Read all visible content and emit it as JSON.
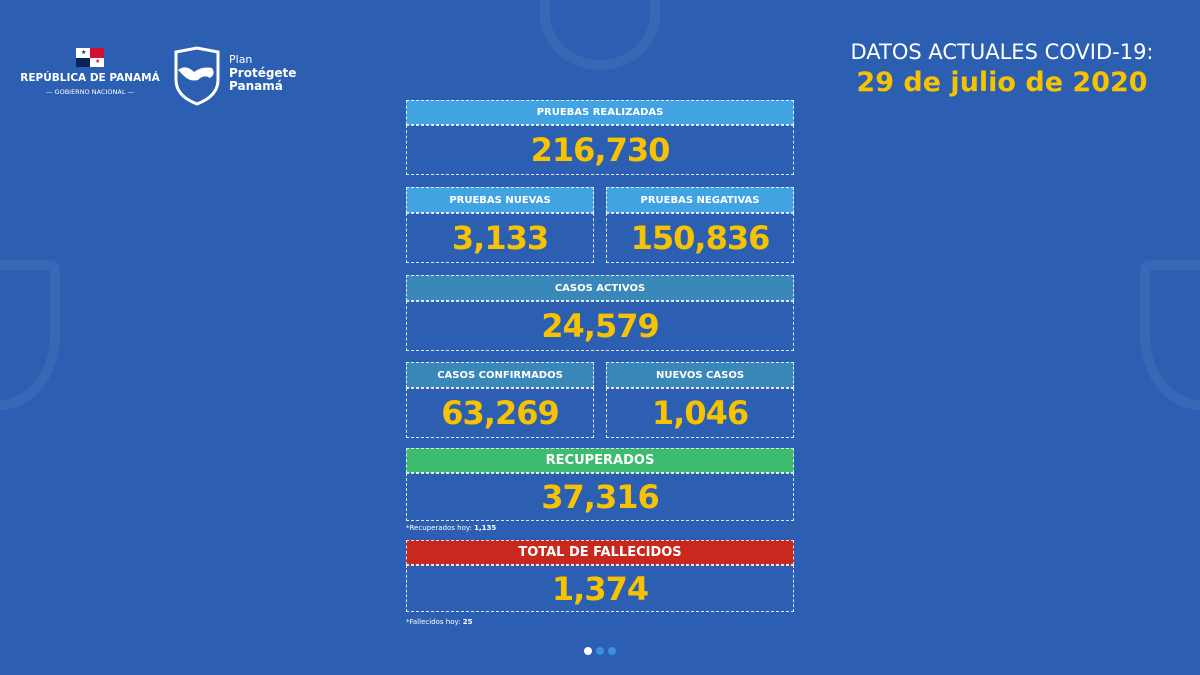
{
  "logos": {
    "republica": "REPÚBLICA DE PANAMÁ",
    "gobierno": "GOBIERNO NACIONAL",
    "plan": "Plan",
    "plan_bold1": "Protégete",
    "plan_bold2": "Panamá"
  },
  "title": {
    "line1": "DATOS ACTUALES COVID-19:",
    "date": "29 de julio de 2020"
  },
  "stats": {
    "pruebas_realizadas": {
      "label": "PRUEBAS REALIZADAS",
      "value": "216,730"
    },
    "pruebas_nuevas": {
      "label": "PRUEBAS NUEVAS",
      "value": "3,133"
    },
    "pruebas_negativas": {
      "label": "PRUEBAS NEGATIVAS",
      "value": "150,836"
    },
    "casos_activos": {
      "label": "CASOS ACTIVOS",
      "value": "24,579"
    },
    "casos_confirmados": {
      "label": "CASOS CONFIRMADOS",
      "value": "63,269"
    },
    "nuevos_casos": {
      "label": "NUEVOS CASOS",
      "value": "1,046"
    },
    "recuperados": {
      "label": "RECUPERADOS",
      "value": "37,316",
      "note_label": "*Recuperados hoy:",
      "note_value": "1,135"
    },
    "fallecidos": {
      "label": "TOTAL DE FALLECIDOS",
      "value": "1,374",
      "note_label": "*Fallecidos hoy:",
      "note_value": "25"
    }
  },
  "colors": {
    "background": "#2c5fb1",
    "header_blue": "#41a3e2",
    "header_teal": "#3a87b9",
    "header_green": "#3dbb6e",
    "header_red": "#c8281e",
    "value_yellow": "#f7c300"
  },
  "carousel": {
    "pages": 3,
    "active": 1
  }
}
